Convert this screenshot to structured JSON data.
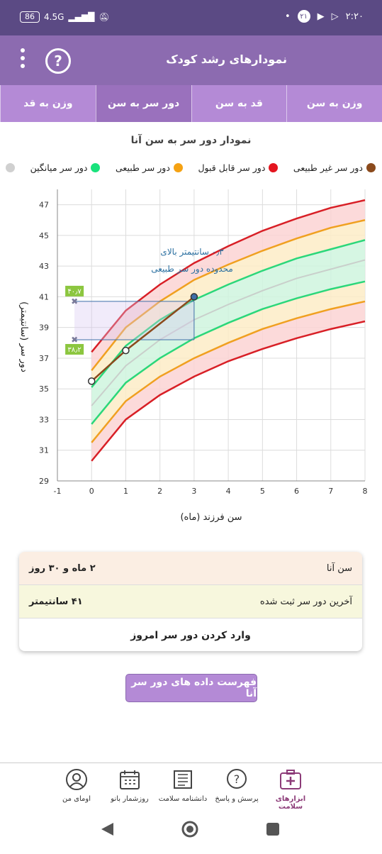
{
  "status_bar": {
    "battery": "86",
    "network": "4.5G",
    "time": "۲:۲۰",
    "notification_count": "۲۱"
  },
  "header": {
    "title": "نمودارهای رشد کودک",
    "help_icon": "help-circle-icon",
    "menu_icon": "more-vert-icon"
  },
  "tabs": [
    {
      "label": "وزن به سن",
      "active": false
    },
    {
      "label": "قد به سن",
      "active": false
    },
    {
      "label": "دور سر به سن",
      "active": true
    },
    {
      "label": "وزن به قد",
      "active": false
    }
  ],
  "chart_title": "نمودار دور سر به سن آنا",
  "legend": [
    {
      "label": "دور سر غیر طبیعی",
      "color": "#8b4a1c"
    },
    {
      "label": "دور سر قابل قبول",
      "color": "#e4151f"
    },
    {
      "label": "دور سر طبیعی",
      "color": "#f5a213"
    },
    {
      "label": "دور سر میانگین",
      "color": "#19e27c"
    },
    {
      "label": "",
      "color": "#d0d0d0"
    }
  ],
  "chart_data": {
    "type": "line",
    "xlabel": "سن فرزند (ماه)",
    "ylabel": "دور سر (سانتیمتر)",
    "xlim": [
      -1,
      8
    ],
    "ylim": [
      29,
      48
    ],
    "x_ticks": [
      -1,
      0,
      1,
      2,
      3,
      4,
      5,
      6,
      7,
      8
    ],
    "y_ticks": [
      29,
      31,
      33,
      35,
      37,
      39,
      41,
      43,
      45,
      47
    ],
    "reference_x": [
      0,
      1,
      2,
      3,
      4,
      5,
      6,
      7,
      8
    ],
    "reference_curves": [
      {
        "role": "red-lower",
        "color": "#d81f26",
        "values": [
          30.3,
          33.0,
          34.6,
          35.8,
          36.8,
          37.6,
          38.3,
          38.9,
          39.4
        ]
      },
      {
        "role": "orange-lower",
        "color": "#f0a020",
        "values": [
          31.5,
          34.2,
          35.8,
          37.0,
          38.0,
          38.9,
          39.6,
          40.2,
          40.7
        ]
      },
      {
        "role": "green-lower",
        "color": "#2bd77a",
        "values": [
          32.7,
          35.4,
          37.0,
          38.3,
          39.3,
          40.2,
          40.9,
          41.5,
          42.0
        ]
      },
      {
        "role": "median",
        "color": "#c9cfcb",
        "values": [
          33.9,
          36.5,
          38.2,
          39.5,
          40.5,
          41.4,
          42.2,
          42.8,
          43.4
        ]
      },
      {
        "role": "green-upper",
        "color": "#2bd77a",
        "values": [
          35.1,
          37.8,
          39.5,
          40.8,
          41.8,
          42.7,
          43.5,
          44.1,
          44.7
        ]
      },
      {
        "role": "orange-upper",
        "color": "#f0a020",
        "values": [
          36.2,
          39.0,
          40.7,
          42.1,
          43.1,
          44.0,
          44.8,
          45.5,
          46.0
        ]
      },
      {
        "role": "red-upper",
        "color": "#d81f26",
        "values": [
          37.4,
          40.1,
          41.8,
          43.2,
          44.3,
          45.3,
          46.1,
          46.8,
          47.3
        ]
      }
    ],
    "child_series": {
      "x": [
        0,
        1,
        3
      ],
      "y": [
        35.5,
        37.5,
        41.0
      ],
      "line_color": "#8b4a1c"
    },
    "range_markers": [
      {
        "x": -0.5,
        "y": 40.7,
        "label": "۴۰٫۷"
      },
      {
        "x": -0.5,
        "y": 38.2,
        "label": "۳۸٫۲"
      }
    ],
    "annotation": {
      "line1": "۰٫۳ سانتیمتر بالای",
      "line2": "محدوده دور سر طبیعی"
    },
    "grid": true
  },
  "info_card": {
    "age_label": "سن آنا",
    "age_value": "۲ ماه و ۳۰ روز",
    "last_label": "آخرین دور سر ثبت شده",
    "last_value": "۴۱ سانتیمتر",
    "enter_today": "وارد کردن دور سر امروز"
  },
  "list_button": "فهرست داده های دور سر آنا",
  "bottom_nav": [
    {
      "label": "ابزارهای سلامت",
      "icon": "medical-kit-icon",
      "active": true
    },
    {
      "label": "پرسش و پاسخ",
      "icon": "question-bubble-icon",
      "active": false
    },
    {
      "label": "دانشنامه سلامت",
      "icon": "encyclopedia-book-icon",
      "active": false
    },
    {
      "label": "روزشمار بانو",
      "icon": "calendar-icon",
      "active": false
    },
    {
      "label": "اومای من",
      "icon": "user-avatar-icon",
      "active": false
    }
  ]
}
